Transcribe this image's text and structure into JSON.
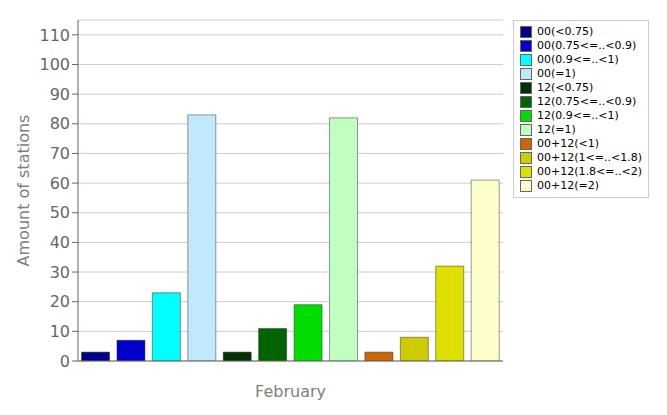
{
  "chart_data": {
    "type": "bar",
    "xlabel": "February",
    "ylabel": "Amount of stations",
    "categories": [
      "00(<0.75)",
      "00(0.75<=..<0.9)",
      "00(0.9<=..<1)",
      "00(=1)",
      "12(<0.75)",
      "12(0.75<=..<0.9)",
      "12(0.9<=..<1)",
      "12(=1)",
      "00+12(<1)",
      "00+12(1<=..<1.8)",
      "00+12(1.8<=..<2)",
      "00+12(=2)"
    ],
    "values": [
      3,
      7,
      23,
      83,
      3,
      11,
      19,
      82,
      3,
      8,
      32,
      61
    ],
    "colors": [
      "#00008b",
      "#0000cd",
      "#00ffff",
      "#c0e8ff",
      "#003300",
      "#006400",
      "#00dd00",
      "#c0ffc0",
      "#cc6600",
      "#cccc00",
      "#e0e000",
      "#ffffcc"
    ],
    "ylim": [
      0,
      115
    ],
    "yticks": [
      0,
      10,
      20,
      30,
      40,
      50,
      60,
      70,
      80,
      90,
      100,
      110
    ],
    "grid": true,
    "legend": "upper right",
    "tick_labels": "y"
  }
}
